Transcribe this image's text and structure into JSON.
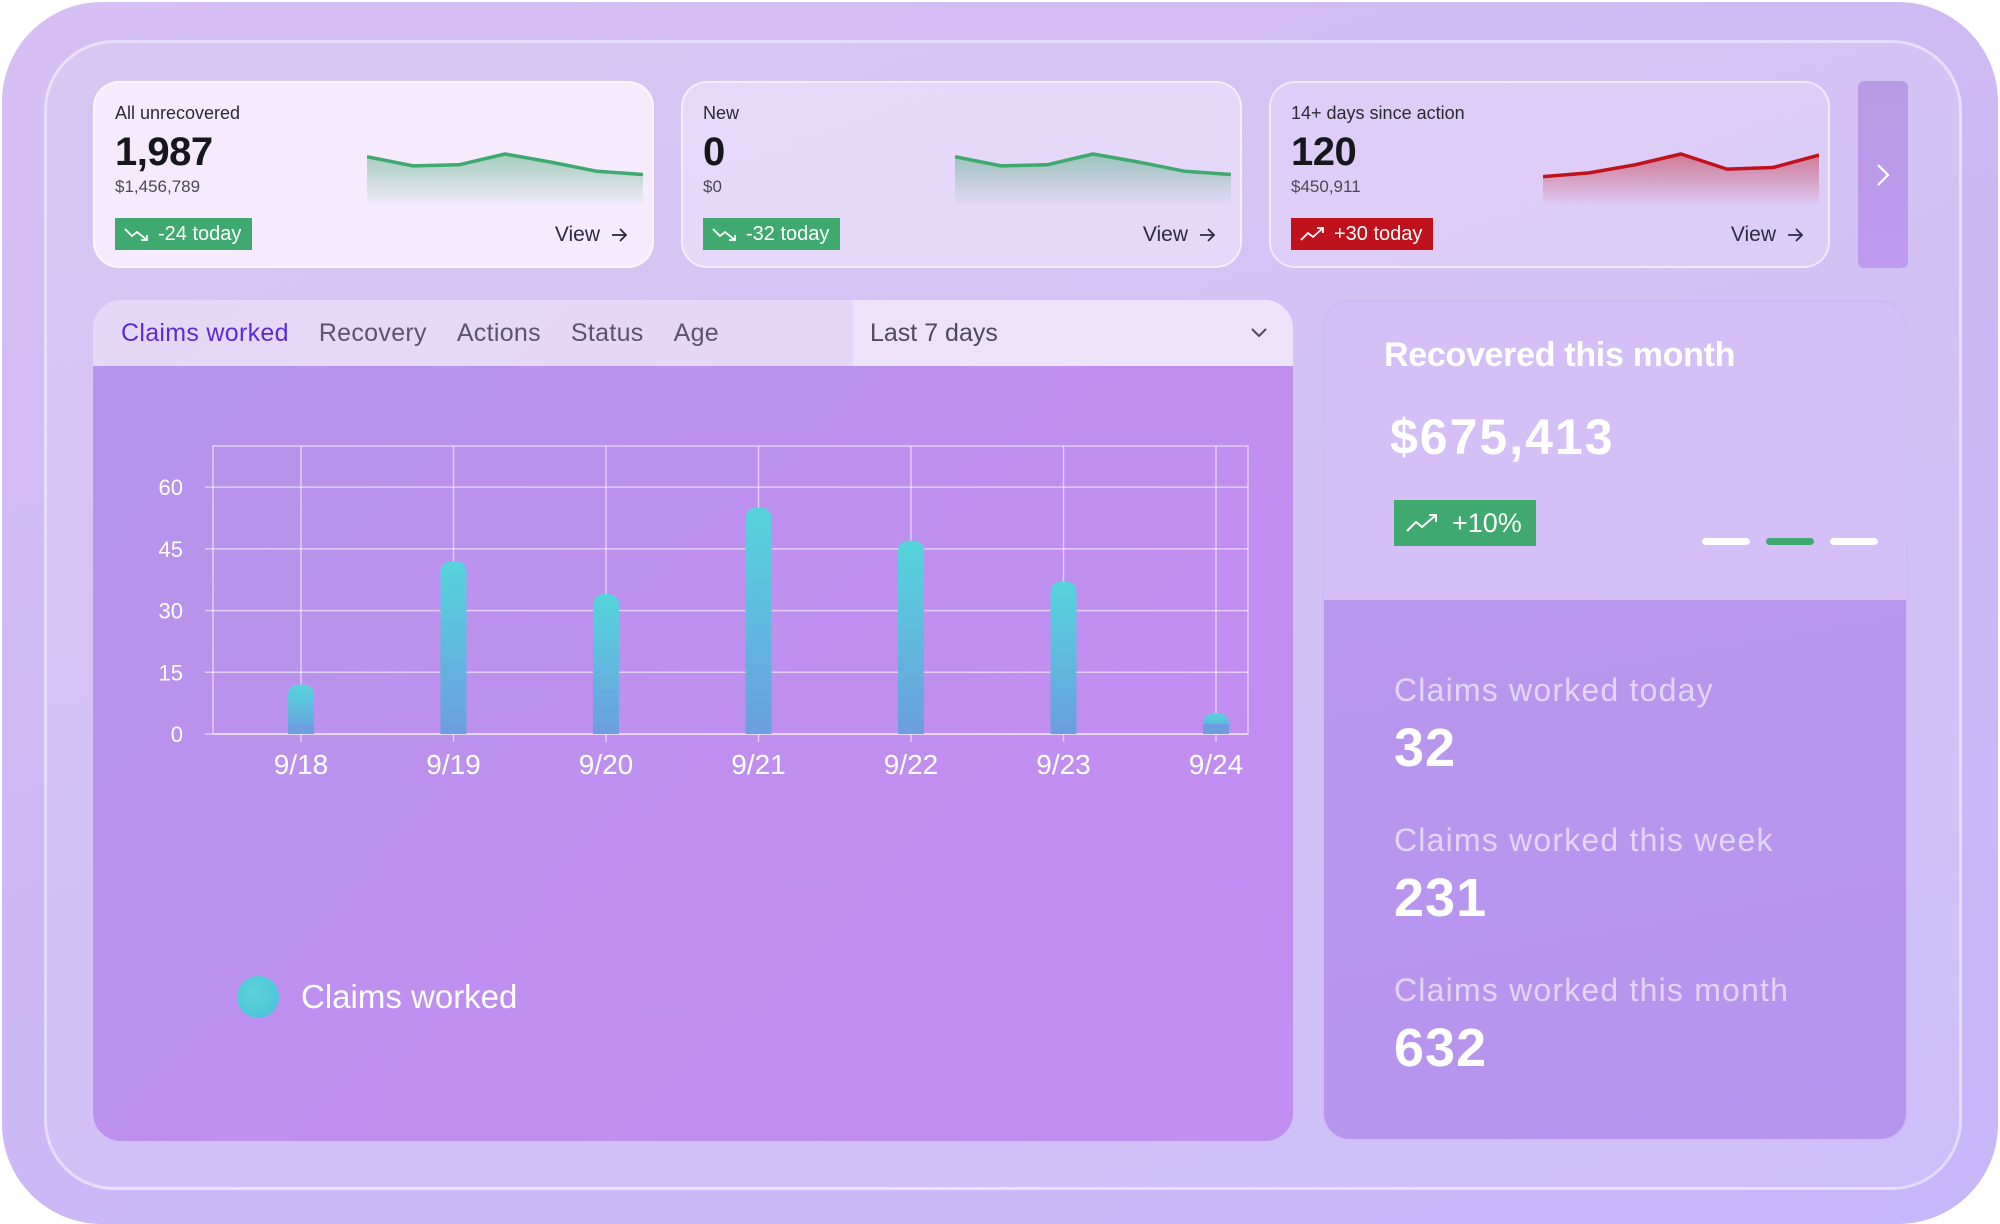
{
  "kpis": [
    {
      "label": "All unrecovered",
      "value": "1,987",
      "sub": "$1,456,789",
      "badge": "-24 today",
      "trend": "down",
      "view": "View",
      "spark": [
        0.55,
        0.72,
        0.7,
        0.5,
        0.65,
        0.82,
        0.88
      ],
      "color": "#3fa96f"
    },
    {
      "label": "New",
      "value": "0",
      "sub": "$0",
      "badge": "-32 today",
      "trend": "down",
      "view": "View",
      "spark": [
        0.55,
        0.72,
        0.7,
        0.5,
        0.65,
        0.82,
        0.88
      ],
      "color": "#3fa96f"
    },
    {
      "label": "14+ days since action",
      "value": "120",
      "sub": "$450,911",
      "badge": "+30 today",
      "trend": "up",
      "view": "View",
      "spark": [
        0.92,
        0.85,
        0.7,
        0.5,
        0.78,
        0.75,
        0.52
      ],
      "color": "#c0121d"
    }
  ],
  "tabs": [
    "Claims worked",
    "Recovery",
    "Actions",
    "Status",
    "Age"
  ],
  "active_tab": "Claims worked",
  "range": "Last 7 days",
  "chart_data": {
    "type": "bar",
    "categories": [
      "9/18",
      "9/19",
      "9/20",
      "9/21",
      "9/22",
      "9/23",
      "9/24"
    ],
    "series": [
      {
        "name": "Claims worked",
        "values": [
          12,
          42,
          34,
          55,
          47,
          37,
          5
        ]
      }
    ],
    "yticks": [
      0,
      15,
      30,
      45,
      60
    ],
    "ylim": [
      0,
      70
    ],
    "grid": true,
    "legend": "bottom-left",
    "bar_color": "#4fc6dc"
  },
  "legend_label": "Claims worked",
  "recovered": {
    "title": "Recovered this month",
    "amount": "$675,413",
    "badge": "+10%",
    "slides": 3,
    "active_slide": 1
  },
  "stats": [
    {
      "label": "Claims worked today",
      "value": "32"
    },
    {
      "label": "Claims worked this week",
      "value": "231"
    },
    {
      "label": "Claims worked this month",
      "value": "632"
    }
  ]
}
